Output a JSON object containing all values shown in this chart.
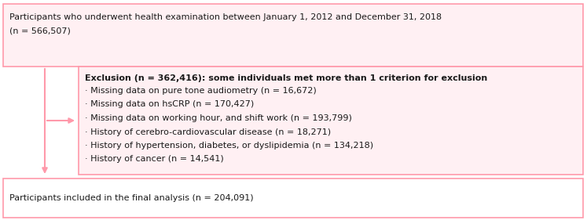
{
  "box1": {
    "text_line1": "Participants who underwent health examination between January 1, 2012 and December 31, 2018",
    "text_line2": "(n = 566,507)",
    "facecolor": "#fff0f3",
    "edgecolor": "#ff99aa",
    "linewidth": 1.2
  },
  "box2": {
    "title": "Exclusion (n = 362,416): some individuals met more than 1 criterion for exclusion",
    "lines": [
      "· Missing data on pure tone audiometry (n = 16,672)",
      "· Missing data on hsCRP (n = 170,427)",
      "· Missing data on working hour, and shift work (n = 193,799)",
      "· History of cerebro-cardiovascular disease (n = 18,271)",
      "· History of hypertension, diabetes, or dyslipidemia (n = 134,218)",
      "· History of cancer (n = 14,541)"
    ],
    "facecolor": "#fff0f3",
    "edgecolor": "#ff99aa",
    "linewidth": 1.2
  },
  "box3": {
    "text": "Participants included in the final analysis (n = 204,091)",
    "facecolor": "#ffffff",
    "edgecolor": "#ff99aa",
    "linewidth": 1.2
  },
  "arrow_color": "#ff99aa",
  "font_size": 8.0,
  "font_size_bold": 8.0,
  "text_color": "#1a1a1a"
}
